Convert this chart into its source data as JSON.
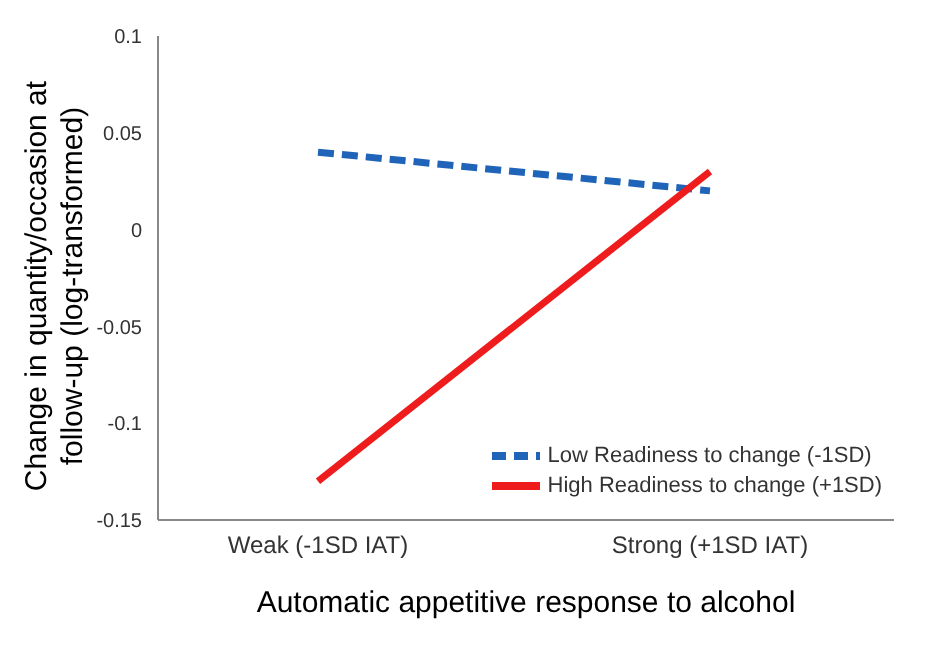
{
  "chart_data": {
    "type": "line",
    "xlabel": "Automatic appetitive response to alcohol",
    "ylabel": "Change in quantity/occasion at follow-up (log-transformed)",
    "categories": [
      "Weak (-1SD IAT)",
      "Strong (+1SD IAT)"
    ],
    "series": [
      {
        "name": "Low Readiness to change (-1SD)",
        "color": "#1f64b8",
        "values": [
          0.04,
          0.02
        ],
        "line_style": "dashed"
      },
      {
        "name": "High Readiness to change (+1SD)",
        "color": "#ee1c1c",
        "values": [
          -0.13,
          0.03
        ],
        "line_style": "solid"
      }
    ],
    "ylim": [
      -0.15,
      0.1
    ],
    "yticks": [
      -0.15,
      -0.1,
      -0.05,
      0,
      0.05,
      0.1
    ],
    "grid": false,
    "legend": "bottom right",
    "marker": "none"
  }
}
